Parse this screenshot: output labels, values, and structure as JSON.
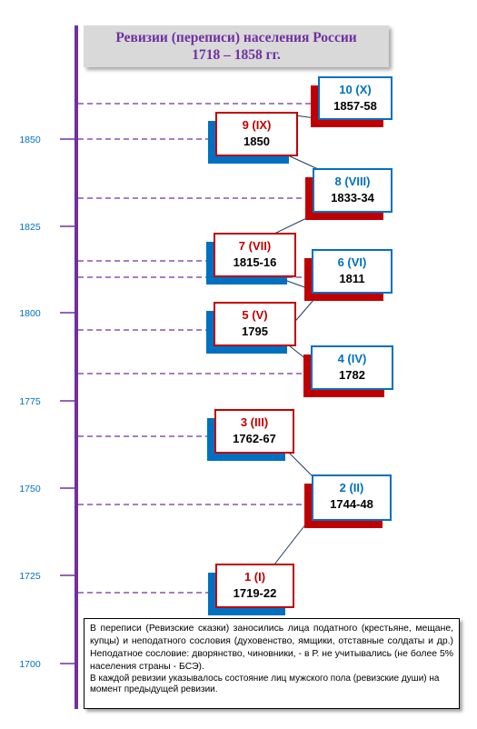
{
  "title": {
    "line1": "Ревизии (переписи) населения России",
    "line2": "1718 – 1858 гг."
  },
  "colors": {
    "axis": "#7030a0",
    "red": "#c00000",
    "blue": "#0070c0",
    "title_text": "#7030a0"
  },
  "timeline": {
    "ticks": [
      "1850",
      "1825",
      "1800",
      "1775",
      "1750",
      "1725",
      "1700"
    ]
  },
  "revisions": [
    {
      "number": "1 (I)",
      "years": "1719-22",
      "color": "red"
    },
    {
      "number": "2 (II)",
      "years": "1744-48",
      "color": "blue"
    },
    {
      "number": "3 (III)",
      "years": "1762-67",
      "color": "red"
    },
    {
      "number": "4 (IV)",
      "years": "1782",
      "color": "blue"
    },
    {
      "number": "5 (V)",
      "years": "1795",
      "color": "red"
    },
    {
      "number": "6 (VI)",
      "years": "1811",
      "color": "blue"
    },
    {
      "number": "7 (VII)",
      "years": "1815-16",
      "color": "red"
    },
    {
      "number": "8 (VIII)",
      "years": "1833-34",
      "color": "blue"
    },
    {
      "number": "9 (IX)",
      "years": "1850",
      "color": "red"
    },
    {
      "number": "10 (X)",
      "years": "1857-58",
      "color": "blue"
    }
  ],
  "note": {
    "p1": "В переписи (Ревизские сказки) заносились лица податного (крестьяне, мещане, купцы) и неподатного сословия (духовенство, ямщики, отставные солдаты и др.) Неподатное сословие: дворянство, чиновники, - в Р. не учитывались (не более 5% населения страны - БСЭ).",
    "p2": "В каждой ревизии указывалось состояние лиц мужского пола (ревизские души) на момент предыдущей ревизии."
  }
}
